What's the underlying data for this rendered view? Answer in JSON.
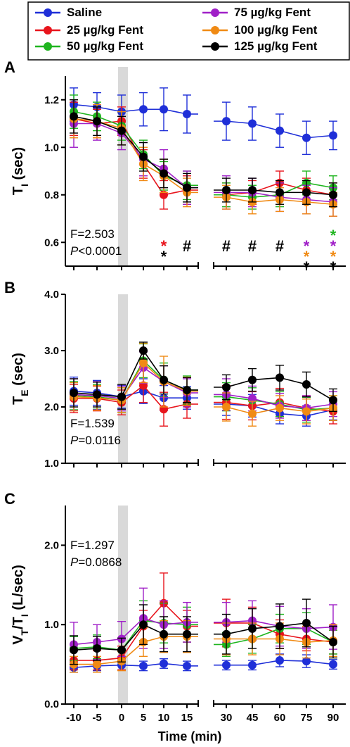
{
  "legend": [
    {
      "label": "Saline",
      "color": "#1f2fd8"
    },
    {
      "label": "25 µg/kg Fent",
      "color": "#e8141c"
    },
    {
      "label": "50 µg/kg Fent",
      "color": "#1fb51f"
    },
    {
      "label": "75 µg/kg Fent",
      "color": "#a020c8"
    },
    {
      "label": "100 µg/kg Fent",
      "color": "#f08a14"
    },
    {
      "label": "125 µg/kg Fent",
      "color": "#000000"
    }
  ],
  "x_ticks": [
    "-10",
    "-5",
    "0",
    "5",
    "10",
    "15",
    "30",
    "45",
    "60",
    "75",
    "90"
  ],
  "xlabel": "Time (min)",
  "chart_data": [
    {
      "panel": "A",
      "type": "line",
      "ylabel_main": "T",
      "ylabel_sub": "I",
      "ylabel_rest": " (sec)",
      "ylim": [
        0.5,
        1.3
      ],
      "yticks": [
        "0.6",
        "0.8",
        "1.0",
        "1.2"
      ],
      "stat_f": "F=2.503",
      "stat_p_label": "P",
      "stat_p_rest": "<0.0001",
      "x": [
        "-10",
        "-5",
        "0",
        "5",
        "10",
        "15",
        "30",
        "45",
        "60",
        "75",
        "90"
      ],
      "series": [
        {
          "name": "Saline",
          "color": "#1f2fd8",
          "values": [
            1.18,
            1.17,
            1.15,
            1.16,
            1.16,
            1.14,
            1.11,
            1.1,
            1.07,
            1.04,
            1.05
          ],
          "errors": [
            0.07,
            0.06,
            0.07,
            0.07,
            0.09,
            0.08,
            0.08,
            0.07,
            0.07,
            0.07,
            0.06
          ]
        },
        {
          "name": "25 µg/kg Fent",
          "color": "#e8141c",
          "values": [
            1.12,
            1.1,
            1.11,
            0.93,
            0.8,
            0.82,
            0.8,
            0.81,
            0.85,
            0.82,
            0.8
          ],
          "errors": [
            0.07,
            0.06,
            0.06,
            0.06,
            0.06,
            0.06,
            0.05,
            0.05,
            0.05,
            0.05,
            0.05
          ]
        },
        {
          "name": "50 µg/kg Fent",
          "color": "#1fb51f",
          "values": [
            1.15,
            1.13,
            1.09,
            0.97,
            0.88,
            0.84,
            0.8,
            0.79,
            0.8,
            0.85,
            0.83
          ],
          "errors": [
            0.07,
            0.06,
            0.06,
            0.06,
            0.06,
            0.06,
            0.05,
            0.05,
            0.05,
            0.05,
            0.05
          ]
        },
        {
          "name": "75 µg/kg Fent",
          "color": "#a020c8",
          "values": [
            1.1,
            1.1,
            1.06,
            0.95,
            0.91,
            0.83,
            0.81,
            0.81,
            0.79,
            0.78,
            0.77
          ],
          "errors": [
            0.1,
            0.07,
            0.07,
            0.07,
            0.08,
            0.07,
            0.07,
            0.06,
            0.06,
            0.06,
            0.06
          ]
        },
        {
          "name": "100 µg/kg Fent",
          "color": "#f08a14",
          "values": [
            1.12,
            1.11,
            1.08,
            0.93,
            0.88,
            0.81,
            0.79,
            0.77,
            0.78,
            0.77,
            0.76
          ],
          "errors": [
            0.08,
            0.07,
            0.07,
            0.07,
            0.07,
            0.06,
            0.05,
            0.05,
            0.05,
            0.05,
            0.05
          ]
        },
        {
          "name": "125 µg/kg Fent",
          "color": "#000000",
          "values": [
            1.13,
            1.11,
            1.07,
            0.96,
            0.89,
            0.83,
            0.82,
            0.82,
            0.81,
            0.81,
            0.8
          ],
          "errors": [
            0.07,
            0.06,
            0.06,
            0.06,
            0.06,
            0.06,
            0.05,
            0.05,
            0.05,
            0.05,
            0.05
          ]
        }
      ],
      "annotations": [
        {
          "x": "10",
          "row": 0,
          "text": "*",
          "color": "#e8141c"
        },
        {
          "x": "10",
          "row": 1,
          "text": "*",
          "color": "#000000"
        },
        {
          "x": "15",
          "row": 0,
          "text": "#",
          "color": "#000000"
        },
        {
          "x": "30",
          "row": 0,
          "text": "#",
          "color": "#000000"
        },
        {
          "x": "45",
          "row": 0,
          "text": "#",
          "color": "#000000"
        },
        {
          "x": "60",
          "row": 0,
          "text": "#",
          "color": "#000000"
        },
        {
          "x": "75",
          "row": 0,
          "text": "*",
          "color": "#a020c8"
        },
        {
          "x": "75",
          "row": 1,
          "text": "*",
          "color": "#f08a14"
        },
        {
          "x": "75",
          "row": 2,
          "text": "*",
          "color": "#000000"
        },
        {
          "x": "90",
          "row": -1,
          "text": "*",
          "color": "#1fb51f"
        },
        {
          "x": "90",
          "row": 0,
          "text": "*",
          "color": "#a020c8"
        },
        {
          "x": "90",
          "row": 1,
          "text": "*",
          "color": "#f08a14"
        },
        {
          "x": "90",
          "row": 2,
          "text": "*",
          "color": "#000000"
        }
      ]
    },
    {
      "panel": "B",
      "type": "line",
      "ylabel_main": "T",
      "ylabel_sub": "E",
      "ylabel_rest": "  (sec)",
      "ylim": [
        1.0,
        4.0
      ],
      "yticks": [
        "1.0",
        "2.0",
        "3.0",
        "4.0"
      ],
      "stat_f": "F=1.539",
      "stat_p_label": "P",
      "stat_p_rest": "=0.0116",
      "x": [
        "-10",
        "-5",
        "0",
        "5",
        "10",
        "15",
        "30",
        "45",
        "60",
        "75",
        "90"
      ],
      "series": [
        {
          "name": "Saline",
          "color": "#1f2fd8",
          "values": [
            2.28,
            2.25,
            2.18,
            2.28,
            2.16,
            2.16,
            2.05,
            2.02,
            1.88,
            1.84,
            1.95
          ],
          "errors": [
            0.25,
            0.22,
            0.2,
            0.22,
            0.22,
            0.2,
            0.2,
            0.2,
            0.18,
            0.18,
            0.18
          ]
        },
        {
          "name": "25 µg/kg Fent",
          "color": "#e8141c",
          "values": [
            2.15,
            2.15,
            2.08,
            2.38,
            1.96,
            2.05,
            2.08,
            2.02,
            2.08,
            1.98,
            1.92
          ],
          "errors": [
            0.25,
            0.22,
            0.22,
            0.3,
            0.3,
            0.25,
            0.3,
            0.25,
            0.25,
            0.22,
            0.22
          ]
        },
        {
          "name": "50 µg/kg Fent",
          "color": "#1fb51f",
          "values": [
            2.2,
            2.18,
            2.12,
            2.82,
            2.48,
            2.3,
            2.18,
            2.12,
            2.05,
            1.95,
            1.98
          ],
          "errors": [
            0.25,
            0.22,
            0.22,
            0.3,
            0.3,
            0.25,
            0.25,
            0.22,
            0.22,
            0.22,
            0.22
          ]
        },
        {
          "name": "75 µg/kg Fent",
          "color": "#a020c8",
          "values": [
            2.22,
            2.2,
            2.15,
            2.7,
            2.45,
            2.25,
            2.22,
            2.15,
            2.02,
            1.98,
            2.05
          ],
          "errors": [
            0.28,
            0.25,
            0.22,
            0.28,
            0.28,
            0.25,
            0.28,
            0.22,
            0.22,
            0.22,
            0.22
          ]
        },
        {
          "name": "100 µg/kg Fent",
          "color": "#f08a14",
          "values": [
            2.18,
            2.16,
            2.12,
            2.78,
            2.45,
            2.28,
            2.0,
            1.88,
            1.98,
            1.92,
            1.98
          ],
          "errors": [
            0.25,
            0.22,
            0.22,
            0.35,
            0.45,
            0.25,
            0.25,
            0.22,
            0.22,
            0.22,
            0.22
          ]
        },
        {
          "name": "125 µg/kg Fent",
          "color": "#000000",
          "values": [
            2.25,
            2.22,
            2.18,
            3.0,
            2.48,
            2.3,
            2.35,
            2.48,
            2.52,
            2.4,
            2.12
          ],
          "errors": [
            0.25,
            0.22,
            0.22,
            0.15,
            0.25,
            0.22,
            0.22,
            0.2,
            0.22,
            0.22,
            0.2
          ]
        }
      ],
      "annotations": []
    },
    {
      "panel": "C",
      "type": "line",
      "ylabel_main": "V",
      "ylabel_sub": "T",
      "ylabel_mid": "/T",
      "ylabel_sub2": "I",
      "ylabel_rest": " (L/sec)",
      "ylim": [
        0.0,
        2.5
      ],
      "yticks": [
        "0.0",
        "1.0",
        "2.0"
      ],
      "stat_f": "F=1.297",
      "stat_p_label": "P",
      "stat_p_rest": "=0.0868",
      "x": [
        "-10",
        "-5",
        "0",
        "5",
        "10",
        "15",
        "30",
        "45",
        "60",
        "75",
        "90"
      ],
      "series": [
        {
          "name": "Saline",
          "color": "#1f2fd8",
          "values": [
            0.46,
            0.48,
            0.49,
            0.48,
            0.51,
            0.48,
            0.49,
            0.49,
            0.55,
            0.54,
            0.5
          ],
          "errors": [
            0.06,
            0.06,
            0.06,
            0.06,
            0.06,
            0.06,
            0.06,
            0.06,
            0.08,
            0.08,
            0.06
          ]
        },
        {
          "name": "25 µg/kg Fent",
          "color": "#e8141c",
          "values": [
            0.55,
            0.55,
            0.58,
            0.98,
            1.27,
            0.98,
            1.02,
            1.02,
            0.88,
            0.82,
            0.78
          ],
          "errors": [
            0.12,
            0.12,
            0.15,
            0.2,
            0.38,
            0.2,
            0.3,
            0.2,
            0.18,
            0.15,
            0.15
          ]
        },
        {
          "name": "50 µg/kg Fent",
          "color": "#1fb51f",
          "values": [
            0.7,
            0.72,
            0.68,
            1.05,
            1.02,
            1.0,
            0.75,
            0.82,
            0.95,
            0.95,
            0.78
          ],
          "errors": [
            0.15,
            0.15,
            0.15,
            0.25,
            0.25,
            0.22,
            0.15,
            0.18,
            0.18,
            0.2,
            0.15
          ]
        },
        {
          "name": "75 µg/kg Fent",
          "color": "#a020c8",
          "values": [
            0.75,
            0.78,
            0.82,
            1.08,
            1.0,
            1.03,
            1.03,
            1.05,
            0.98,
            0.95,
            0.97
          ],
          "errors": [
            0.28,
            0.22,
            0.22,
            0.38,
            0.3,
            0.25,
            0.25,
            0.25,
            0.25,
            0.25,
            0.28
          ]
        },
        {
          "name": "100 µg/kg Fent",
          "color": "#f08a14",
          "values": [
            0.5,
            0.5,
            0.54,
            0.78,
            0.85,
            0.85,
            0.82,
            0.82,
            0.82,
            0.78,
            0.8
          ],
          "errors": [
            0.1,
            0.1,
            0.12,
            0.18,
            0.2,
            0.2,
            0.2,
            0.2,
            0.2,
            0.2,
            0.2
          ]
        },
        {
          "name": "125 µg/kg Fent",
          "color": "#000000",
          "values": [
            0.68,
            0.7,
            0.68,
            1.0,
            0.88,
            0.88,
            0.88,
            0.95,
            0.98,
            1.02,
            0.78
          ],
          "errors": [
            0.18,
            0.15,
            0.15,
            0.25,
            0.22,
            0.22,
            0.25,
            0.25,
            0.28,
            0.3,
            0.2
          ]
        }
      ],
      "annotations": []
    }
  ]
}
